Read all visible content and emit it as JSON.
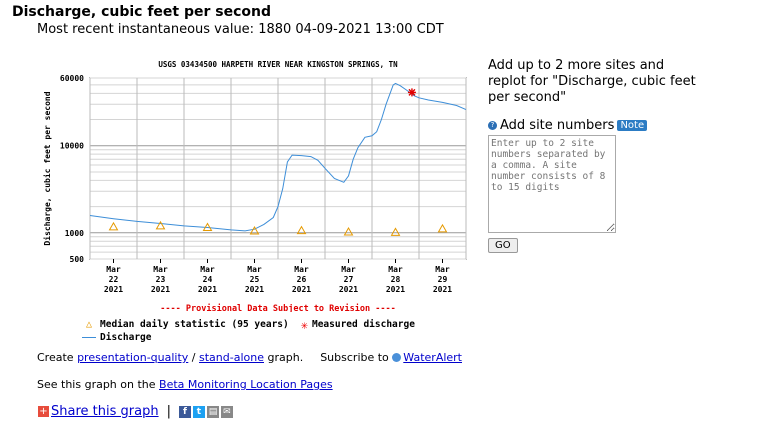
{
  "header": {
    "title": "Discharge, cubic feet per second",
    "recent_value": "Most recent instantaneous value: 1880 04-09-2021   13:00 CDT"
  },
  "chart_data": {
    "type": "line",
    "title": "USGS 03434500 HARPETH RIVER NEAR KINGSTON SPRINGS, TN",
    "ylabel": "Discharge, cubic feet per second",
    "xlabel": "",
    "y_scale": "log",
    "ylim": [
      500,
      60000
    ],
    "xlim": [
      0,
      8
    ],
    "y_ticks": [
      "60000",
      "10000",
      "1000",
      "500"
    ],
    "x_ticks": [
      {
        "x": 0.5,
        "label": "Mar\n22\n2021"
      },
      {
        "x": 1.5,
        "label": "Mar\n23\n2021"
      },
      {
        "x": 2.5,
        "label": "Mar\n24\n2021"
      },
      {
        "x": 3.5,
        "label": "Mar\n25\n2021"
      },
      {
        "x": 4.5,
        "label": "Mar\n26\n2021"
      },
      {
        "x": 5.5,
        "label": "Mar\n27\n2021"
      },
      {
        "x": 6.5,
        "label": "Mar\n28\n2021"
      },
      {
        "x": 7.5,
        "label": "Mar\n29\n2021"
      }
    ],
    "grid": true,
    "series": [
      {
        "name": "Discharge",
        "color": "#3d8ed8",
        "x": [
          0,
          0.5,
          1,
          1.5,
          2,
          2.5,
          3,
          3.3,
          3.5,
          3.7,
          3.9,
          4.0,
          4.1,
          4.2,
          4.3,
          4.5,
          4.7,
          4.85,
          5.0,
          5.2,
          5.4,
          5.5,
          5.6,
          5.7,
          5.85,
          6.0,
          6.1,
          6.2,
          6.3,
          6.45,
          6.5,
          6.6,
          6.75,
          6.9,
          7.0,
          7.2,
          7.5,
          7.8,
          8.0
        ],
        "y": [
          1580,
          1450,
          1350,
          1280,
          1200,
          1150,
          1080,
          1050,
          1100,
          1250,
          1500,
          2000,
          3200,
          6500,
          7800,
          7700,
          7500,
          6800,
          5500,
          4200,
          3800,
          4500,
          7000,
          9500,
          12500,
          13000,
          14500,
          20000,
          30000,
          50000,
          52000,
          49000,
          43000,
          37500,
          35500,
          33500,
          31500,
          29000,
          26000
        ]
      },
      {
        "name": "Median daily statistic (95 years)",
        "color": "#e69a00",
        "x": [
          0.5,
          1.5,
          2.5,
          3.5,
          4.5,
          5.5,
          6.5,
          7.5
        ],
        "y": [
          1170,
          1200,
          1150,
          1050,
          1060,
          1020,
          1010,
          1110
        ]
      },
      {
        "name": "Measured discharge",
        "color": "#e00000",
        "x": [
          6.85
        ],
        "y": [
          41000
        ]
      }
    ],
    "note": "---- Provisional Data Subject to Revision ----"
  },
  "legend": {
    "median": "Median daily statistic (95 years)",
    "measured": "Measured discharge",
    "discharge": "Discharge"
  },
  "links": {
    "create_prefix": "Create",
    "presentation": "presentation-quality",
    "slash": "/",
    "standalone": "stand-alone",
    "graph_suffix": "graph.",
    "subscribe": "Subscribe to",
    "wateralert": "WaterAlert",
    "beta_prefix": "See this graph on the",
    "beta_link": "Beta Monitoring Location Pages"
  },
  "share": {
    "label": "Share this graph",
    "sep": "|"
  },
  "panel": {
    "add_text": "Add up to 2 more sites and replot for \"Discharge, cubic feet per second\"",
    "site_numbers_label": "Add site numbers",
    "note_label": "Note",
    "textarea_placeholder": "Enter up to 2 site numbers separated by a comma. A site number consists of 8 to 15 digits",
    "go_label": "GO"
  },
  "icons": {
    "share_plus": "share-plus-icon",
    "facebook": "facebook-icon",
    "twitter": "twitter-icon",
    "print": "print-icon",
    "email": "email-icon",
    "help": "help-icon",
    "wateralert": "wateralert-icon"
  },
  "colors": {
    "link": "#0000cc",
    "discharge_line": "#3d8ed8",
    "median_marker": "#e69a00",
    "measured_marker": "#e00000",
    "provisional_text": "#e00000"
  }
}
